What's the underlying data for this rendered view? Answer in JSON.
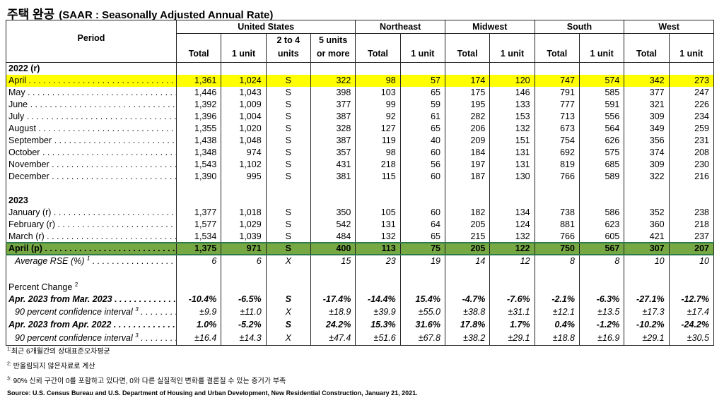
{
  "title": {
    "main": "주택 완공",
    "sub": "(SAAR : Seasonally Adjusted Annual Rate)"
  },
  "header": {
    "period": "Period",
    "groups": [
      "United States",
      "Northeast",
      "Midwest",
      "South",
      "West"
    ],
    "columns": [
      "Total",
      "1 unit",
      "2 to 4\nunits",
      "5 units\nor more",
      "Total",
      "1 unit",
      "Total",
      "1 unit",
      "Total",
      "1 unit",
      "Total",
      "1 unit"
    ]
  },
  "rows": [
    {
      "label": "2022 (r)",
      "style": "bold",
      "values": []
    },
    {
      "label": "April",
      "style": "yellow",
      "dots": true,
      "values": [
        "1,361",
        "1,024",
        "S",
        "322",
        "98",
        "57",
        "174",
        "120",
        "747",
        "574",
        "342",
        "273"
      ]
    },
    {
      "label": "May",
      "dots": true,
      "values": [
        "1,446",
        "1,043",
        "S",
        "398",
        "103",
        "65",
        "175",
        "146",
        "791",
        "585",
        "377",
        "247"
      ]
    },
    {
      "label": "June",
      "dots": true,
      "values": [
        "1,392",
        "1,009",
        "S",
        "377",
        "99",
        "59",
        "195",
        "133",
        "777",
        "591",
        "321",
        "226"
      ]
    },
    {
      "label": "July",
      "dots": true,
      "values": [
        "1,396",
        "1,004",
        "S",
        "387",
        "92",
        "61",
        "282",
        "153",
        "713",
        "556",
        "309",
        "234"
      ]
    },
    {
      "label": "August",
      "dots": true,
      "values": [
        "1,355",
        "1,020",
        "S",
        "328",
        "127",
        "65",
        "206",
        "132",
        "673",
        "564",
        "349",
        "259"
      ]
    },
    {
      "label": "September",
      "dots": true,
      "values": [
        "1,438",
        "1,048",
        "S",
        "387",
        "119",
        "40",
        "209",
        "151",
        "754",
        "626",
        "356",
        "231"
      ]
    },
    {
      "label": "October",
      "dots": true,
      "values": [
        "1,348",
        "974",
        "S",
        "357",
        "98",
        "60",
        "184",
        "131",
        "692",
        "575",
        "374",
        "208"
      ]
    },
    {
      "label": "November",
      "dots": true,
      "values": [
        "1,543",
        "1,102",
        "S",
        "431",
        "218",
        "56",
        "197",
        "131",
        "819",
        "685",
        "309",
        "230"
      ]
    },
    {
      "label": "December",
      "dots": true,
      "values": [
        "1,390",
        "995",
        "S",
        "381",
        "115",
        "60",
        "187",
        "130",
        "766",
        "589",
        "322",
        "216"
      ]
    },
    {
      "label": "",
      "values": []
    },
    {
      "label": "2023",
      "style": "bold",
      "values": []
    },
    {
      "label": "January (r)",
      "dots": true,
      "values": [
        "1,377",
        "1,018",
        "S",
        "350",
        "105",
        "60",
        "182",
        "134",
        "738",
        "586",
        "352",
        "238"
      ]
    },
    {
      "label": "February (r)",
      "dots": true,
      "values": [
        "1,577",
        "1,029",
        "S",
        "542",
        "131",
        "64",
        "205",
        "124",
        "881",
        "623",
        "360",
        "218"
      ]
    },
    {
      "label": "March (r)",
      "dots": true,
      "values": [
        "1,534",
        "1,039",
        "S",
        "484",
        "132",
        "65",
        "215",
        "132",
        "766",
        "605",
        "421",
        "237"
      ]
    },
    {
      "label": "April (p)",
      "style": "green",
      "dots": true,
      "values": [
        "1,375",
        "971",
        "S",
        "400",
        "113",
        "75",
        "205",
        "122",
        "750",
        "567",
        "307",
        "207"
      ]
    },
    {
      "label": "Average RSE (%)",
      "sup": "1",
      "style": "italic",
      "indent": true,
      "dots": true,
      "values": [
        "6",
        "6",
        "X",
        "15",
        "23",
        "19",
        "14",
        "12",
        "8",
        "8",
        "10",
        "10"
      ]
    },
    {
      "label": "",
      "gap": true,
      "values": []
    },
    {
      "label": "Percent Change",
      "sup": "2",
      "values": []
    },
    {
      "label": "Apr. 2023 from Mar. 2023",
      "style": "bi",
      "dots": true,
      "h": "mid",
      "values": [
        "-10.4%",
        "-6.5%",
        "S",
        "-17.4%",
        "-14.4%",
        "15.4%",
        "-4.7%",
        "-7.6%",
        "-2.1%",
        "-6.3%",
        "-27.1%",
        "-12.7%"
      ]
    },
    {
      "label": "90 percent confidence interval",
      "sup": "3",
      "style": "italic",
      "indent": true,
      "dots": true,
      "h": "mid",
      "values": [
        "±9.9",
        "±11.0",
        "X",
        "±18.9",
        "±39.9",
        "±55.0",
        "±38.8",
        "±31.1",
        "±12.1",
        "±13.5",
        "±17.3",
        "±17.4"
      ]
    },
    {
      "label": "Apr. 2023 from Apr. 2022",
      "style": "bi",
      "dots": true,
      "h": "mid",
      "values": [
        "1.0%",
        "-5.2%",
        "S",
        "24.2%",
        "15.3%",
        "31.6%",
        "17.8%",
        "1.7%",
        "0.4%",
        "-1.2%",
        "-10.2%",
        "-24.2%"
      ]
    },
    {
      "label": "90 percent confidence interval",
      "sup": "3",
      "style": "italic",
      "indent": true,
      "dots": true,
      "h": "tall",
      "last": true,
      "values": [
        "±16.4",
        "±14.3",
        "X",
        "±47.4",
        "±51.6",
        "±67.8",
        "±38.2",
        "±29.1",
        "±18.8",
        "±16.9",
        "±29.1",
        "±30.5"
      ]
    }
  ],
  "footnotes": [
    {
      "mark": "1:",
      "text": "최근 6개월간의 상대표준오차평균"
    },
    {
      "mark": "2:",
      "text": " 반올림되지 않은자료로 계산"
    },
    {
      "mark": "3:",
      "text": " 90% 신뢰 구간이 0를 포함하고 있다면, 0와 다른 실질적인 변화를 결론질 수 있는 증거가 부족"
    }
  ],
  "source": "Source: U.S. Census Bureau and U.S. Department of Housing and Urban Development, New Residential Construction, January 21, 2021.",
  "colors": {
    "highlight_yellow": "#ffff00",
    "highlight_green": "#76a843",
    "green_border": "#2e7a4c"
  }
}
